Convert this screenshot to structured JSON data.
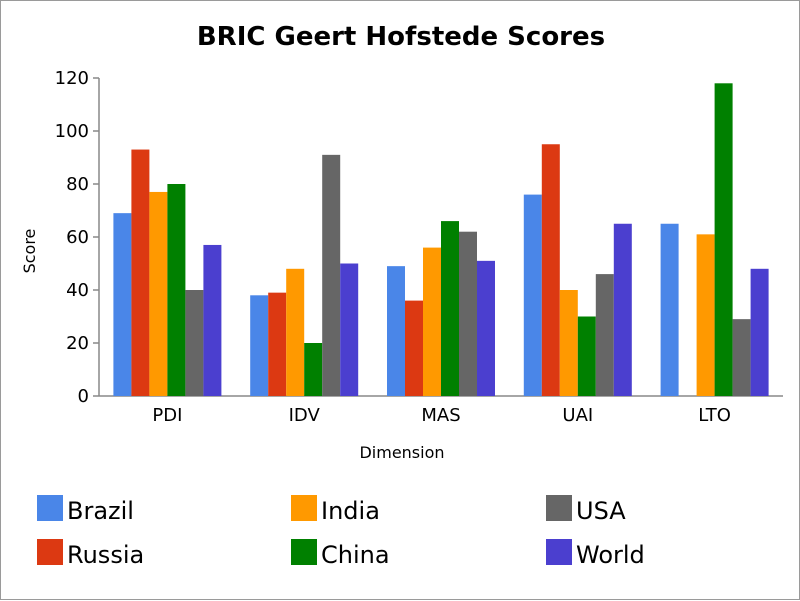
{
  "chart_data": {
    "type": "bar",
    "title": "BRIC Geert Hofstede Scores",
    "xlabel": "Dimension",
    "ylabel": "Score",
    "ylim": [
      0,
      120
    ],
    "yticks": [
      "0",
      "20",
      "40",
      "60",
      "80",
      "100",
      "120"
    ],
    "categories": [
      "PDI",
      "IDV",
      "MAS",
      "UAI",
      "LTO"
    ],
    "series": [
      {
        "name": "Brazil",
        "color": "#4a86e8",
        "values": [
          69,
          38,
          49,
          76,
          65
        ]
      },
      {
        "name": "Russia",
        "color": "#dc3912",
        "values": [
          93,
          39,
          36,
          95,
          null
        ]
      },
      {
        "name": "India",
        "color": "#ff9900",
        "values": [
          77,
          48,
          56,
          40,
          61
        ]
      },
      {
        "name": "China",
        "color": "#008000",
        "values": [
          80,
          20,
          66,
          30,
          118
        ]
      },
      {
        "name": "USA",
        "color": "#666666",
        "values": [
          40,
          91,
          62,
          46,
          29
        ]
      },
      {
        "name": "World",
        "color": "#4b3fcf",
        "values": [
          57,
          50,
          51,
          65,
          48
        ]
      }
    ],
    "grid": false,
    "legend_position": "bottom"
  }
}
